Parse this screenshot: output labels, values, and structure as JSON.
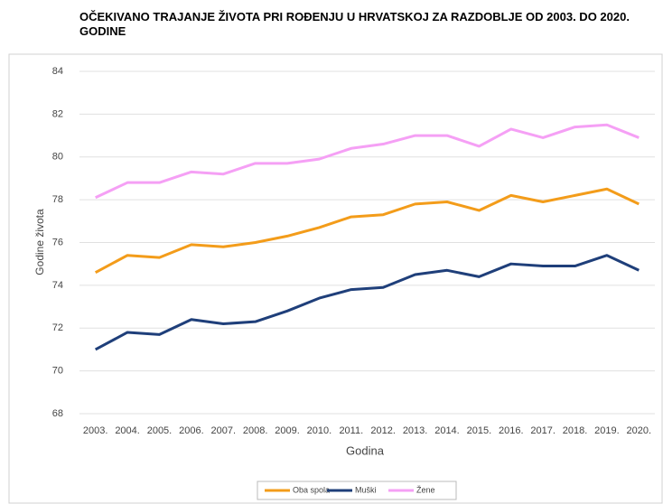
{
  "chart_data": {
    "type": "line",
    "title": "OČEKIVANO TRAJANJE ŽIVOTA PRI ROĐENJU U HRVATSKOJ ZA RAZDOBLJE OD 2003. DO 2020. GODINE",
    "x_label": "Godina",
    "y_label": "Godine života",
    "categories": [
      "2003.",
      "2004.",
      "2005.",
      "2006.",
      "2007.",
      "2008.",
      "2009.",
      "2010.",
      "2011.",
      "2012.",
      "2013.",
      "2014.",
      "2015.",
      "2016.",
      "2017.",
      "2018.",
      "2019.",
      "2020."
    ],
    "series": [
      {
        "name": "Oba spola",
        "color": "#f39c1a",
        "values": [
          74.6,
          75.4,
          75.3,
          75.9,
          75.8,
          76.0,
          76.3,
          76.7,
          77.2,
          77.3,
          77.8,
          77.9,
          77.5,
          78.2,
          77.9,
          78.2,
          78.5,
          77.8
        ]
      },
      {
        "name": "Muški",
        "color": "#1f3f7a",
        "values": [
          71.0,
          71.8,
          71.7,
          72.4,
          72.2,
          72.3,
          72.8,
          73.4,
          73.8,
          73.9,
          74.5,
          74.7,
          74.4,
          75.0,
          74.9,
          74.9,
          75.4,
          74.7
        ]
      },
      {
        "name": "Žene",
        "color": "#f5a0f5",
        "values": [
          78.1,
          78.8,
          78.8,
          79.3,
          79.2,
          79.7,
          79.7,
          79.9,
          80.4,
          80.6,
          81.0,
          81.0,
          80.5,
          81.3,
          80.9,
          81.4,
          81.5,
          80.9
        ]
      }
    ],
    "ylim": [
      68,
      84
    ],
    "yticks": [
      68,
      70,
      72,
      74,
      76,
      78,
      80,
      82,
      84
    ],
    "grid": true,
    "legend": "bottom"
  }
}
